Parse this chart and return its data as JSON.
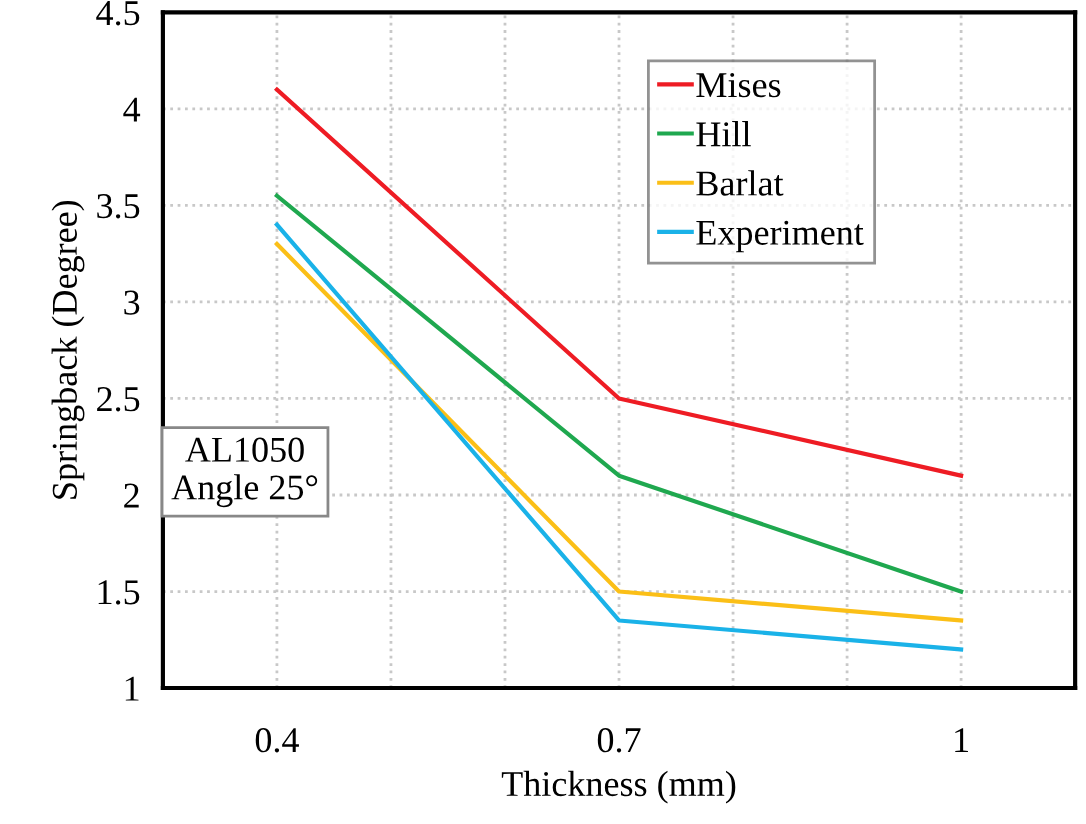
{
  "chart_data": {
    "type": "line",
    "xlabel": "Thickness (mm)",
    "ylabel": "Springback (Degree)",
    "x": [
      0.4,
      0.7,
      1
    ],
    "series": [
      {
        "name": "Mises",
        "color": "#ee1c24",
        "values": [
          4.1,
          2.5,
          2.1
        ]
      },
      {
        "name": "Hill",
        "color": "#1fa84f",
        "values": [
          3.55,
          2.1,
          1.5
        ]
      },
      {
        "name": "Barlat",
        "color": "#fbbf17",
        "values": [
          3.3,
          1.5,
          1.35
        ]
      },
      {
        "name": "Experiment",
        "color": "#1ab2e8",
        "values": [
          3.4,
          1.35,
          1.2
        ]
      }
    ],
    "xlim": [
      0.3,
      1.1
    ],
    "xticks": [
      0.4,
      {
        "value": 0.5,
        "label": null
      },
      {
        "value": 0.6,
        "label": null
      },
      0.7,
      {
        "value": 0.8,
        "label": null
      },
      {
        "value": 0.9,
        "label": null
      },
      1
    ],
    "ylim": [
      1,
      4.5
    ],
    "yticks": [
      1,
      1.5,
      2,
      2.5,
      3,
      3.5,
      4,
      4.5
    ],
    "grid": true,
    "legend": "top right",
    "marker": "none",
    "line_style": "solid",
    "annotations": [
      "AL1050\nAngle 25°"
    ]
  }
}
